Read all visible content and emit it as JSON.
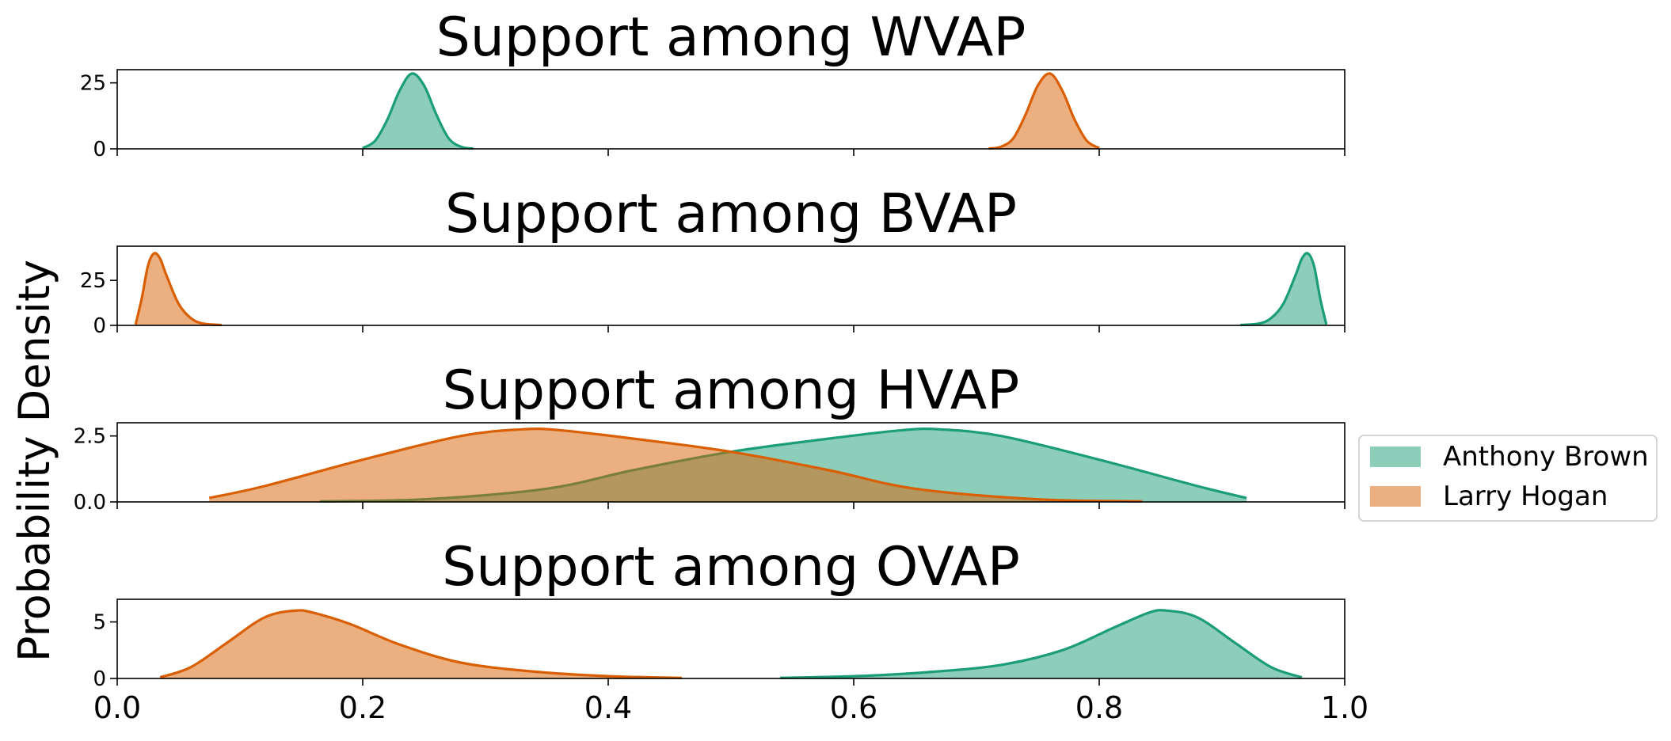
{
  "chart_data": {
    "type": "area",
    "ylabel": "Probability Density",
    "xlim": [
      0.0,
      1.0
    ],
    "x_ticks": [
      0.0,
      0.2,
      0.4,
      0.6,
      0.8,
      1.0
    ],
    "x_tick_labels": [
      "0.0",
      "0.2",
      "0.4",
      "0.6",
      "0.8",
      "1.0"
    ],
    "legend": {
      "placement": "center-right, outside axes",
      "entries": [
        {
          "name": "Anthony Brown",
          "color": "#1b9e77"
        },
        {
          "name": "Larry Hogan",
          "color": "#d95f02"
        }
      ]
    },
    "subplots": [
      {
        "title": "Support among WVAP",
        "ylim": [
          0,
          30
        ],
        "y_ticks": [
          0,
          25
        ],
        "y_tick_labels": [
          "0",
          "25"
        ],
        "series": [
          {
            "name": "Anthony Brown",
            "color": "#1b9e77",
            "x": [
              0.2,
              0.21,
              0.22,
              0.23,
              0.24,
              0.25,
              0.26,
              0.27,
              0.28,
              0.29
            ],
            "density": [
              0.3,
              3.0,
              11.0,
              22.0,
              28.5,
              24.0,
              13.0,
              4.0,
              0.8,
              0.1
            ]
          },
          {
            "name": "Larry Hogan",
            "color": "#d95f02",
            "x": [
              0.71,
              0.72,
              0.73,
              0.74,
              0.75,
              0.76,
              0.77,
              0.78,
              0.79,
              0.8
            ],
            "density": [
              0.1,
              0.8,
              4.0,
              13.0,
              24.0,
              28.5,
              22.0,
              11.0,
              3.0,
              0.3
            ]
          }
        ]
      },
      {
        "title": "Support among BVAP",
        "ylim": [
          0,
          44
        ],
        "y_ticks": [
          0,
          25
        ],
        "y_tick_labels": [
          "0",
          "25"
        ],
        "series": [
          {
            "name": "Anthony Brown",
            "color": "#1b9e77",
            "x": [
              0.915,
              0.93,
              0.94,
              0.95,
              0.96,
              0.965,
              0.97,
              0.975,
              0.98,
              0.985
            ],
            "density": [
              0.2,
              1.0,
              4.0,
              12.0,
              28.0,
              37.0,
              40.0,
              33.0,
              15.0,
              0.5
            ]
          },
          {
            "name": "Larry Hogan",
            "color": "#d95f02",
            "x": [
              0.015,
              0.02,
              0.025,
              0.03,
              0.035,
              0.04,
              0.05,
              0.06,
              0.07,
              0.085
            ],
            "density": [
              0.5,
              15.0,
              33.0,
              40.0,
              37.0,
              28.0,
              12.0,
              4.0,
              1.0,
              0.2
            ]
          }
        ]
      },
      {
        "title": "Support among HVAP",
        "ylim": [
          0,
          3.0
        ],
        "y_ticks": [
          0.0,
          2.5
        ],
        "y_tick_labels": [
          "0.0",
          "2.5"
        ],
        "series": [
          {
            "name": "Anthony Brown",
            "color": "#1b9e77",
            "x": [
              0.165,
              0.25,
              0.35,
              0.42,
              0.5,
              0.58,
              0.64,
              0.67,
              0.72,
              0.8,
              0.88,
              0.92
            ],
            "density": [
              0.02,
              0.1,
              0.5,
              1.2,
              1.9,
              2.4,
              2.72,
              2.75,
              2.5,
              1.6,
              0.6,
              0.15
            ]
          },
          {
            "name": "Larry Hogan",
            "color": "#d95f02",
            "x": [
              0.075,
              0.12,
              0.2,
              0.28,
              0.33,
              0.36,
              0.42,
              0.5,
              0.58,
              0.65,
              0.75,
              0.835
            ],
            "density": [
              0.15,
              0.6,
              1.6,
              2.5,
              2.75,
              2.72,
              2.4,
              1.9,
              1.2,
              0.5,
              0.1,
              0.02
            ]
          }
        ]
      },
      {
        "title": "Support among OVAP",
        "ylim": [
          0,
          7.0
        ],
        "y_ticks": [
          0,
          5
        ],
        "y_tick_labels": [
          "0",
          "5"
        ],
        "series": [
          {
            "name": "Anthony Brown",
            "color": "#1b9e77",
            "x": [
              0.54,
              0.6,
              0.66,
              0.72,
              0.77,
              0.81,
              0.84,
              0.855,
              0.88,
              0.91,
              0.94,
              0.965
            ],
            "density": [
              0.05,
              0.2,
              0.55,
              1.2,
              2.5,
              4.4,
              5.8,
              6.0,
              5.4,
              3.2,
              1.0,
              0.1
            ]
          },
          {
            "name": "Larry Hogan",
            "color": "#d95f02",
            "x": [
              0.035,
              0.06,
              0.09,
              0.12,
              0.145,
              0.16,
              0.19,
              0.23,
              0.28,
              0.34,
              0.4,
              0.46
            ],
            "density": [
              0.1,
              1.0,
              3.2,
              5.4,
              6.0,
              5.8,
              4.8,
              3.0,
              1.4,
              0.6,
              0.2,
              0.05
            ]
          }
        ]
      }
    ]
  }
}
